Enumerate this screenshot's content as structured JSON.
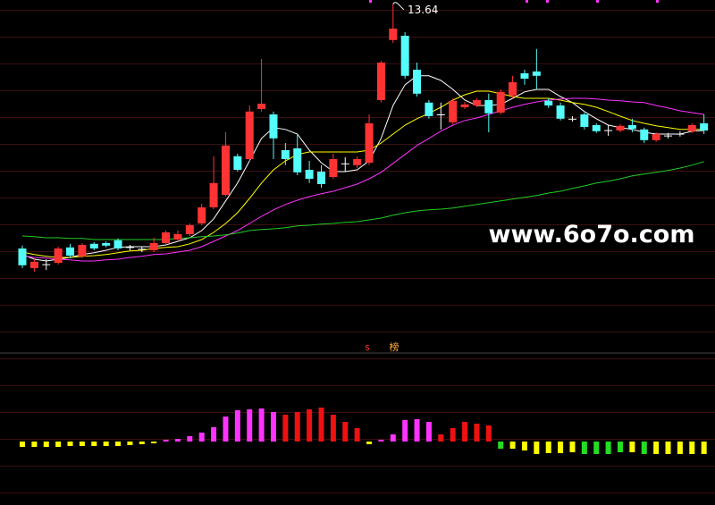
{
  "chart_data": [
    {
      "type": "candlestick",
      "ylim": [
        4.26,
        13.76
      ],
      "open": [
        6.81,
        6.26,
        6.36,
        6.41,
        6.84,
        6.59,
        6.94,
        6.96,
        7.04,
        6.84,
        6.79,
        6.76,
        6.96,
        7.06,
        7.21,
        7.51,
        7.96,
        8.31,
        9.39,
        9.31,
        10.71,
        10.56,
        9.56,
        9.61,
        9.01,
        8.96,
        8.81,
        9.19,
        9.14,
        9.21,
        10.96,
        12.64,
        12.76,
        11.81,
        10.89,
        10.56,
        10.34,
        10.76,
        10.81,
        10.96,
        10.61,
        11.09,
        11.71,
        11.76,
        10.94,
        10.81,
        10.44,
        10.56,
        10.26,
        10.11,
        10.11,
        10.26,
        10.14,
        9.84,
        9.96,
        10.01,
        10.09,
        10.31
      ],
      "high": [
        6.89,
        6.51,
        6.51,
        6.86,
        6.94,
        6.96,
        6.99,
        7.01,
        7.09,
        6.91,
        6.86,
        7.11,
        7.31,
        7.31,
        7.51,
        8.06,
        9.39,
        10.06,
        9.46,
        10.81,
        12.11,
        10.64,
        9.76,
        10.01,
        9.26,
        9.14,
        9.46,
        9.36,
        9.39,
        10.56,
        12.06,
        13.64,
        12.86,
        12.01,
        10.96,
        10.89,
        11.01,
        10.91,
        11.01,
        11.14,
        11.26,
        11.64,
        11.81,
        12.39,
        11.01,
        10.89,
        10.51,
        10.61,
        10.31,
        10.26,
        10.29,
        10.44,
        10.19,
        10.06,
        10.04,
        10.09,
        10.31,
        10.56
      ],
      "low": [
        6.26,
        6.16,
        6.21,
        6.36,
        6.54,
        6.54,
        6.76,
        6.84,
        6.76,
        6.76,
        6.71,
        6.71,
        6.91,
        7.01,
        7.16,
        7.46,
        7.91,
        8.26,
        8.96,
        9.26,
        10.64,
        9.31,
        9.14,
        8.86,
        8.64,
        8.51,
        8.76,
        8.96,
        9.06,
        9.14,
        10.89,
        12.56,
        11.56,
        11.06,
        10.44,
        10.14,
        10.29,
        10.71,
        10.76,
        10.06,
        10.56,
        11.01,
        11.39,
        11.26,
        10.74,
        10.39,
        10.36,
        10.14,
        10.04,
        9.96,
        10.06,
        10.06,
        9.76,
        9.79,
        9.89,
        9.94,
        10.04,
        10.01
      ],
      "close": [
        6.34,
        6.44,
        6.37,
        6.81,
        6.61,
        6.91,
        6.81,
        6.89,
        6.81,
        6.85,
        6.8,
        6.96,
        7.26,
        7.21,
        7.46,
        7.96,
        8.64,
        9.69,
        9.01,
        10.64,
        10.86,
        9.89,
        9.31,
        8.94,
        8.76,
        8.61,
        9.31,
        9.18,
        9.31,
        10.31,
        12.01,
        12.96,
        11.64,
        11.14,
        10.51,
        10.55,
        10.94,
        10.84,
        10.96,
        10.59,
        11.19,
        11.46,
        11.56,
        11.64,
        10.81,
        10.44,
        10.43,
        10.21,
        10.09,
        10.12,
        10.24,
        10.16,
        9.84,
        10.01,
        9.97,
        10.02,
        10.26,
        10.11
      ],
      "up_color": "#ff3333",
      "down_color": "#54fcfc",
      "doji_color": "#ffffff",
      "lines": [
        {
          "color": "#ffffff",
          "values": [
            6.64,
            6.51,
            6.46,
            6.51,
            6.56,
            6.64,
            6.69,
            6.76,
            6.84,
            6.86,
            6.86,
            6.86,
            6.91,
            7.01,
            7.11,
            7.31,
            7.64,
            8.14,
            8.64,
            9.26,
            9.89,
            10.19,
            10.14,
            10.01,
            9.56,
            9.21,
            8.96,
            8.96,
            9.01,
            9.26,
            9.89,
            10.81,
            11.39,
            11.64,
            11.64,
            11.51,
            11.26,
            10.96,
            10.81,
            10.81,
            10.84,
            11.01,
            11.19,
            11.26,
            11.26,
            11.06,
            10.89,
            10.64,
            10.44,
            10.26,
            10.19,
            10.14,
            10.06,
            10.01,
            10.01,
            10.01,
            10.09,
            10.11
          ]
        },
        {
          "color": "#ffff00",
          "values": [
            6.71,
            6.64,
            6.59,
            6.56,
            6.56,
            6.59,
            6.61,
            6.64,
            6.69,
            6.74,
            6.76,
            6.81,
            6.84,
            6.86,
            6.94,
            7.06,
            7.26,
            7.51,
            7.81,
            8.21,
            8.64,
            9.01,
            9.26,
            9.44,
            9.51,
            9.51,
            9.51,
            9.51,
            9.51,
            9.56,
            9.76,
            10.01,
            10.26,
            10.44,
            10.59,
            10.76,
            10.96,
            11.11,
            11.21,
            11.21,
            11.14,
            11.06,
            11.01,
            11.01,
            11.01,
            10.96,
            10.89,
            10.84,
            10.76,
            10.64,
            10.51,
            10.39,
            10.31,
            10.24,
            10.19,
            10.14,
            10.14,
            10.14
          ]
        },
        {
          "color": "#ff33ff",
          "values": [
            6.61,
            6.56,
            6.54,
            6.51,
            6.49,
            6.46,
            6.46,
            6.49,
            6.51,
            6.56,
            6.59,
            6.64,
            6.66,
            6.71,
            6.76,
            6.86,
            7.01,
            7.16,
            7.31,
            7.51,
            7.71,
            7.89,
            8.04,
            8.16,
            8.26,
            8.34,
            8.41,
            8.51,
            8.61,
            8.76,
            8.94,
            9.19,
            9.44,
            9.69,
            9.89,
            10.09,
            10.26,
            10.39,
            10.46,
            10.56,
            10.66,
            10.76,
            10.84,
            10.91,
            10.96,
            10.99,
            11.01,
            11.01,
            10.99,
            10.96,
            10.94,
            10.91,
            10.89,
            10.81,
            10.74,
            10.66,
            10.61,
            10.56
          ]
        },
        {
          "color": "#22cc22",
          "values": [
            7.16,
            7.14,
            7.11,
            7.11,
            7.09,
            7.09,
            7.06,
            7.06,
            7.06,
            7.06,
            7.06,
            7.06,
            7.06,
            7.09,
            7.11,
            7.14,
            7.16,
            7.19,
            7.24,
            7.31,
            7.34,
            7.36,
            7.39,
            7.44,
            7.46,
            7.49,
            7.51,
            7.54,
            7.56,
            7.61,
            7.66,
            7.74,
            7.81,
            7.86,
            7.89,
            7.91,
            7.94,
            7.99,
            8.04,
            8.09,
            8.14,
            8.19,
            8.24,
            8.29,
            8.36,
            8.41,
            8.49,
            8.56,
            8.64,
            8.69,
            8.76,
            8.84,
            8.89,
            8.94,
            8.99,
            9.06,
            9.14,
            9.24
          ]
        }
      ],
      "high_label": "13.64",
      "annotations": [
        "s",
        "榜"
      ],
      "watermark": "www.6o7o.com"
    },
    {
      "type": "bar",
      "ylim": [
        -71,
        94
      ],
      "values": [
        -6,
        -6,
        -6,
        -6,
        -5,
        -5,
        -5,
        -5,
        -5,
        -4,
        -3,
        -2,
        2,
        3,
        6,
        10,
        16,
        28,
        35,
        36,
        37,
        33,
        30,
        33,
        36,
        38,
        30,
        22,
        15,
        -3,
        2,
        8,
        24,
        25,
        22,
        8,
        15,
        22,
        20,
        18,
        -8,
        -8,
        -10,
        -14,
        -13,
        -13,
        -12,
        -14,
        -14,
        -14,
        -12,
        -12,
        -14,
        -14,
        -14,
        -14,
        -14,
        -14
      ],
      "colors": [
        "#ffff00",
        "#ffff00",
        "#ffff00",
        "#ffff00",
        "#ffff00",
        "#ffff00",
        "#ffff00",
        "#ffff00",
        "#ffff00",
        "#ffff00",
        "#ffff00",
        "#ffff00",
        "#ff33ff",
        "#ff33ff",
        "#ff33ff",
        "#ff33ff",
        "#ff33ff",
        "#ff33ff",
        "#ff33ff",
        "#ff33ff",
        "#ff33ff",
        "#ff33ff",
        "#ee1111",
        "#ee1111",
        "#ee1111",
        "#ee1111",
        "#ee1111",
        "#ee1111",
        "#ee1111",
        "#ffff00",
        "#ff33ff",
        "#ff33ff",
        "#ff33ff",
        "#ff33ff",
        "#ff33ff",
        "#ee1111",
        "#ee1111",
        "#ee1111",
        "#ee1111",
        "#ee1111",
        "#22dd22",
        "#ffff00",
        "#ffff00",
        "#ffff00",
        "#ffff00",
        "#ffff00",
        "#ffff00",
        "#22dd22",
        "#22dd22",
        "#22dd22",
        "#22dd22",
        "#ffff00",
        "#22dd22",
        "#ffff00",
        "#ffff00",
        "#ffff00",
        "#ffff00",
        "#ffff00"
      ]
    }
  ]
}
